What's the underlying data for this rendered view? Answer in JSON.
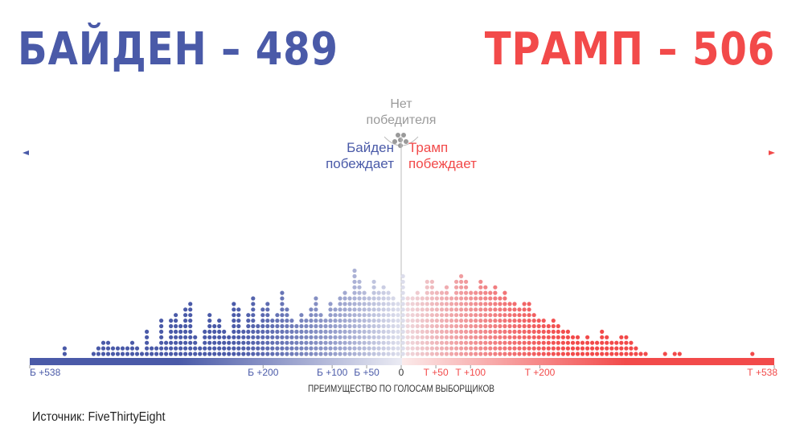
{
  "headline": {
    "biden": "БАЙДЕН – 489",
    "trump": "ТРАМП – 506",
    "biden_color": "#4a5aa8",
    "trump_color": "#f24a4a"
  },
  "labels": {
    "no_winner_line1": "Нет",
    "no_winner_line2": "победителя",
    "biden_wins_line1": "Байден",
    "biden_wins_line2": "побеждает",
    "trump_wins_line1": "Трамп",
    "trump_wins_line2": "побеждает",
    "xlabel": "ПРЕИМУЩЕСТВО ПО ГОЛОСАМ ВЫБОРЩИКОВ"
  },
  "source": "Источник: FiveThirtyEight",
  "chart_data": {
    "type": "dot-histogram",
    "xlabel": "ПРЕИМУЩЕСТВО ПО ГОЛОСАМ ВЫБОРЩИКОВ",
    "xlim": [
      -538,
      538
    ],
    "ticks": [
      {
        "value": -538,
        "label": "Б +538"
      },
      {
        "value": -200,
        "label": "Б +200"
      },
      {
        "value": -100,
        "label": "Б +100"
      },
      {
        "value": -50,
        "label": "Б +50"
      },
      {
        "value": 0,
        "label": "0"
      },
      {
        "value": 50,
        "label": "Т +50"
      },
      {
        "value": 100,
        "label": "Т +100"
      },
      {
        "value": 200,
        "label": "Т +200"
      },
      {
        "value": 538,
        "label": "Т +538"
      }
    ],
    "bin_width": 7,
    "series": [
      {
        "party": "Байден",
        "color": "#4a5aa8",
        "bin_start": [
          -491,
          -449,
          -442,
          -435,
          -428,
          -421,
          -414,
          -407,
          -400,
          -393,
          -386,
          -379,
          -372,
          -365,
          -358,
          -351,
          -344,
          -337,
          -330,
          -323,
          -316,
          -309,
          -302,
          -295,
          -288,
          -281,
          -274,
          -267,
          -260,
          -253,
          -246,
          -239,
          -232,
          -225,
          -218,
          -211,
          -204,
          -197,
          -190,
          -183,
          -176,
          -169,
          -162,
          -155,
          -148,
          -141,
          -134,
          -127,
          -120,
          -113,
          -106,
          -99,
          -92,
          -85,
          -78,
          -71,
          -64,
          -57,
          -50,
          -43,
          -36,
          -29,
          -22,
          -15,
          -8,
          -1
        ],
        "counts": [
          2,
          1,
          2,
          3,
          3,
          2,
          2,
          2,
          2,
          3,
          2,
          1,
          5,
          2,
          2,
          7,
          3,
          7,
          8,
          6,
          9,
          10,
          4,
          2,
          5,
          8,
          6,
          7,
          5,
          4,
          10,
          9,
          5,
          8,
          11,
          6,
          9,
          10,
          7,
          8,
          12,
          9,
          7,
          6,
          8,
          7,
          9,
          11,
          8,
          7,
          10,
          9,
          11,
          12,
          11,
          16,
          14,
          12,
          11,
          14,
          12,
          13,
          12,
          11,
          10,
          15
        ]
      },
      {
        "party": "Трамп",
        "color": "#f24a4a",
        "bin_start": [
          6,
          13,
          20,
          27,
          34,
          41,
          48,
          55,
          62,
          69,
          76,
          83,
          90,
          97,
          104,
          111,
          118,
          125,
          132,
          139,
          146,
          153,
          160,
          167,
          174,
          181,
          188,
          195,
          202,
          209,
          216,
          223,
          230,
          237,
          244,
          251,
          258,
          265,
          272,
          279,
          286,
          293,
          300,
          307,
          314,
          321,
          328,
          335,
          342,
          349,
          377,
          391,
          398,
          503
        ],
        "counts": [
          11,
          11,
          12,
          11,
          14,
          14,
          12,
          12,
          13,
          11,
          14,
          15,
          14,
          12,
          12,
          14,
          13,
          12,
          13,
          11,
          12,
          10,
          10,
          9,
          10,
          10,
          8,
          7,
          7,
          6,
          7,
          6,
          5,
          5,
          4,
          4,
          3,
          4,
          3,
          3,
          5,
          4,
          3,
          3,
          4,
          4,
          3,
          2,
          1,
          1,
          1,
          1,
          1,
          1
        ]
      }
    ],
    "colors": {
      "biden": "#4a5aa8",
      "trump": "#f24a4a",
      "center_line": "#bdbdbd",
      "grey_dots": "#9a9a9a"
    },
    "grid": false,
    "legend": "none"
  }
}
